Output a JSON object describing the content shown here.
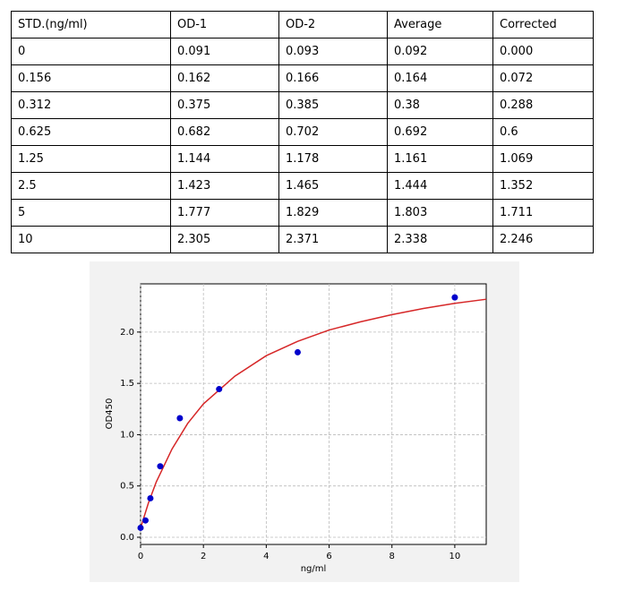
{
  "table": {
    "header": [
      "STD.(ng/ml)",
      "OD-1",
      "OD-2",
      "Average",
      "Corrected"
    ],
    "rows": [
      [
        "0",
        "0.091",
        "0.093",
        "0.092",
        "0.000"
      ],
      [
        "0.156",
        "0.162",
        "0.166",
        "0.164",
        "0.072"
      ],
      [
        "0.312",
        "0.375",
        "0.385",
        "0.38",
        "0.288"
      ],
      [
        "0.625",
        "0.682",
        "0.702",
        "0.692",
        "0.6"
      ],
      [
        "1.25",
        "1.144",
        "1.178",
        "1.161",
        "1.069"
      ],
      [
        "2.5",
        "1.423",
        "1.465",
        "1.444",
        "1.352"
      ],
      [
        "5",
        "1.777",
        "1.829",
        "1.803",
        "1.711"
      ],
      [
        "10",
        "2.305",
        "2.371",
        "2.338",
        "2.246"
      ]
    ]
  },
  "chart_data": {
    "type": "scatter",
    "xlabel": "ng/ml",
    "ylabel": "OD450",
    "x": [
      0,
      0.156,
      0.312,
      0.625,
      1.25,
      2.5,
      5,
      10
    ],
    "values": [
      0.092,
      0.164,
      0.38,
      0.692,
      1.161,
      1.444,
      1.803,
      2.338
    ],
    "color": "#0000cc",
    "curve": {
      "color": "#d62728",
      "x": [
        0,
        0.25,
        0.5,
        1,
        1.5,
        2,
        3,
        4,
        5,
        6,
        7,
        8,
        9,
        10,
        11
      ],
      "values": [
        0.09,
        0.335,
        0.54,
        0.86,
        1.11,
        1.3,
        1.57,
        1.77,
        1.91,
        2.02,
        2.1,
        2.17,
        2.23,
        2.28,
        2.32
      ]
    },
    "xlim": [
      0,
      11
    ],
    "ylim": [
      -0.07,
      2.47
    ],
    "xticks": [
      0,
      2,
      4,
      6,
      8,
      10
    ],
    "yticks": [
      {
        "value": 0,
        "label": "0.0"
      },
      {
        "value": 0.5,
        "label": "0.5"
      },
      {
        "value": 1,
        "label": "1.0"
      },
      {
        "value": 1.5,
        "label": "1.5"
      },
      {
        "value": 2,
        "label": "2.0"
      }
    ],
    "grid": true
  }
}
